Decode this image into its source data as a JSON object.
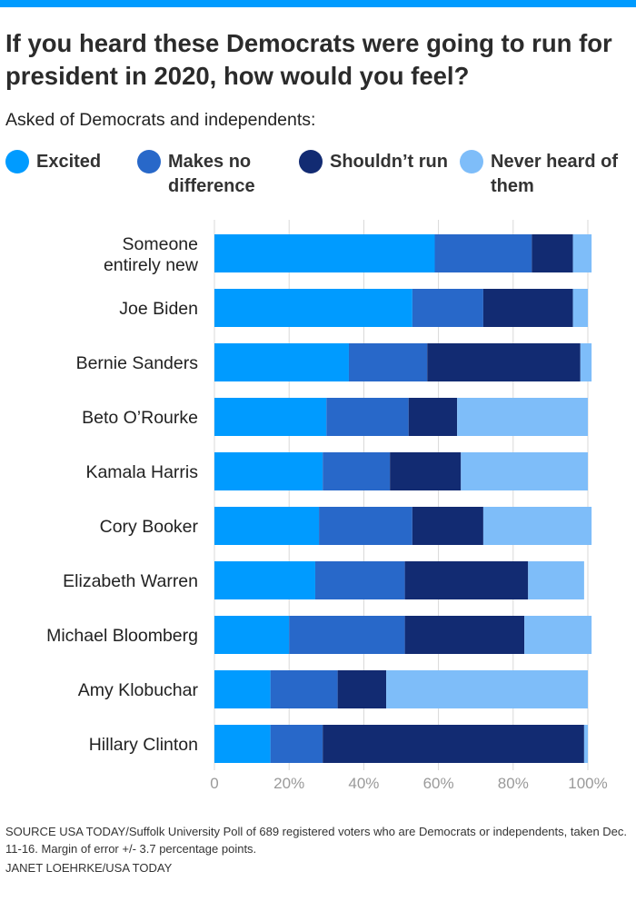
{
  "title": "If you heard these Democrats were going to run for president in 2020, how would you feel?",
  "subtitle": "Asked of Democrats and independents:",
  "colors": {
    "excited": "#009bff",
    "no_difference": "#2868c9",
    "shouldnt_run": "#122b72",
    "never_heard": "#7ebdf9",
    "top_bar": "#009bff"
  },
  "legend": [
    {
      "label": "Excited",
      "color": "#009bff"
    },
    {
      "label": "Makes no difference",
      "color": "#2868c9"
    },
    {
      "label": "Shouldn’t run",
      "color": "#122b72"
    },
    {
      "label": "Never heard of them",
      "color": "#7ebdf9"
    }
  ],
  "chart_data": {
    "type": "bar",
    "orientation": "horizontal",
    "stacked": true,
    "categories": [
      "Someone entirely new",
      "Joe Biden",
      "Bernie Sanders",
      "Beto O’Rourke",
      "Kamala Harris",
      "Cory Booker",
      "Elizabeth Warren",
      "Michael Bloomberg",
      "Amy Klobuchar",
      "Hillary Clinton"
    ],
    "series": [
      {
        "name": "Excited",
        "values": [
          59,
          53,
          36,
          30,
          29,
          28,
          27,
          20,
          15,
          15
        ]
      },
      {
        "name": "Makes no difference",
        "values": [
          26,
          19,
          21,
          22,
          18,
          25,
          24,
          31,
          18,
          14
        ]
      },
      {
        "name": "Shouldn’t run",
        "values": [
          11,
          24,
          41,
          13,
          19,
          19,
          33,
          32,
          13,
          70
        ]
      },
      {
        "name": "Never heard of them",
        "values": [
          5,
          4,
          3,
          35,
          34,
          29,
          15,
          18,
          54,
          1
        ]
      }
    ],
    "xlim": [
      0,
      100
    ],
    "xticks": [
      "0",
      "20%",
      "40%",
      "60%",
      "80%",
      "100%"
    ],
    "grid": true
  },
  "footnote": "SOURCE USA TODAY/Suffolk University Poll of 689 registered voters who are Democrats or independents, taken Dec. 11-16. Margin of error +/- 3.7 percentage points.",
  "credit": "JANET LOEHRKE/USA TODAY"
}
